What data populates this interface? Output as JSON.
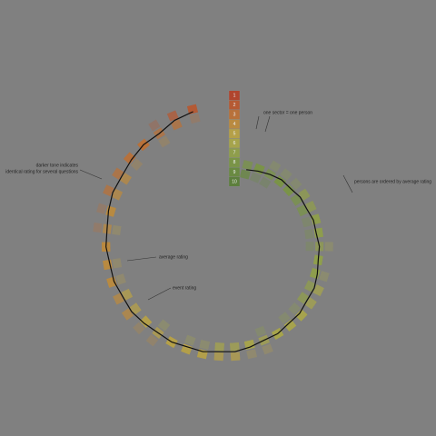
{
  "chart_data": {
    "type": "radial-ratings",
    "scale": [
      1,
      2,
      3,
      4,
      5,
      6,
      7,
      8,
      9,
      10
    ],
    "colors": [
      "#b0452e",
      "#b55a33",
      "#b8713a",
      "#b98a40",
      "#b5a048",
      "#a6a44c",
      "#8f9e4c",
      "#7a9447",
      "#6a8a42",
      "#5d7f3d"
    ],
    "annotations": [
      "one sector = one person",
      "persons are ordered by average rating",
      "darker tone indicates identical rating for several questions",
      "average rating",
      "event rating"
    ],
    "persons": [
      {
        "ratings": [
          9,
          8,
          8,
          9
        ],
        "average": 8.5
      },
      {
        "ratings": [
          8,
          8,
          9,
          8
        ],
        "average": 8.25
      },
      {
        "ratings": [
          9,
          8,
          7,
          8
        ],
        "average": 8
      },
      {
        "ratings": [
          8,
          8,
          8,
          7
        ],
        "average": 7.75
      },
      {
        "ratings": [
          8,
          7,
          8,
          8
        ],
        "average": 7.75
      },
      {
        "ratings": [
          7,
          8,
          8,
          7
        ],
        "average": 7.5
      },
      {
        "ratings": [
          8,
          7,
          7,
          8
        ],
        "average": 7.5
      },
      {
        "ratings": [
          7,
          7,
          8,
          7
        ],
        "average": 7.25
      },
      {
        "ratings": [
          7,
          7,
          7,
          8
        ],
        "average": 7.25
      },
      {
        "ratings": [
          7,
          8,
          6,
          7
        ],
        "average": 7
      },
      {
        "ratings": [
          7,
          7,
          7,
          7
        ],
        "average": 7
      },
      {
        "ratings": [
          6,
          7,
          7,
          7
        ],
        "average": 6.75
      },
      {
        "ratings": [
          7,
          6,
          7,
          6
        ],
        "average": 6.5
      },
      {
        "ratings": [
          6,
          7,
          6,
          7
        ],
        "average": 6.5
      },
      {
        "ratings": [
          6,
          6,
          7,
          6
        ],
        "average": 6.25
      },
      {
        "ratings": [
          6,
          6,
          6,
          7
        ],
        "average": 6.25
      },
      {
        "ratings": [
          6,
          6,
          6,
          6
        ],
        "average": 6
      },
      {
        "ratings": [
          5,
          6,
          7,
          6
        ],
        "average": 6
      },
      {
        "ratings": [
          6,
          5,
          6,
          6
        ],
        "average": 5.75
      },
      {
        "ratings": [
          5,
          6,
          6,
          5
        ],
        "average": 5.5
      },
      {
        "ratings": [
          6,
          5,
          5,
          6
        ],
        "average": 5.5
      },
      {
        "ratings": [
          5,
          5,
          6,
          5
        ],
        "average": 5.25
      },
      {
        "ratings": [
          5,
          5,
          5,
          6
        ],
        "average": 5.25
      },
      {
        "ratings": [
          5,
          5,
          5,
          5
        ],
        "average": 5
      },
      {
        "ratings": [
          4,
          5,
          6,
          5
        ],
        "average": 5
      },
      {
        "ratings": [
          5,
          4,
          5,
          5
        ],
        "average": 4.75
      },
      {
        "ratings": [
          4,
          5,
          4,
          5
        ],
        "average": 4.5
      },
      {
        "ratings": [
          5,
          4,
          4,
          5
        ],
        "average": 4.5
      },
      {
        "ratings": [
          4,
          4,
          5,
          4
        ],
        "average": 4.25
      },
      {
        "ratings": [
          4,
          4,
          4,
          5
        ],
        "average": 4.25
      },
      {
        "ratings": [
          4,
          4,
          4,
          4
        ],
        "average": 4
      },
      {
        "ratings": [
          3,
          4,
          5,
          4
        ],
        "average": 4
      },
      {
        "ratings": [
          4,
          3,
          4,
          4
        ],
        "average": 3.75
      },
      {
        "ratings": [
          3,
          4,
          3,
          4
        ],
        "average": 3.5
      },
      {
        "ratings": [
          4,
          3,
          3,
          4
        ],
        "average": 3.5
      },
      {
        "ratings": [
          3,
          3,
          4,
          3
        ],
        "average": 3.25
      },
      {
        "ratings": [
          3,
          3,
          3,
          3
        ],
        "average": 3
      },
      {
        "ratings": [
          2,
          3,
          4,
          3
        ],
        "average": 3
      },
      {
        "ratings": [
          3,
          2,
          3,
          2
        ],
        "average": 2.5
      },
      {
        "ratings": [
          2,
          2,
          3,
          2
        ],
        "average": 2.25
      }
    ]
  }
}
